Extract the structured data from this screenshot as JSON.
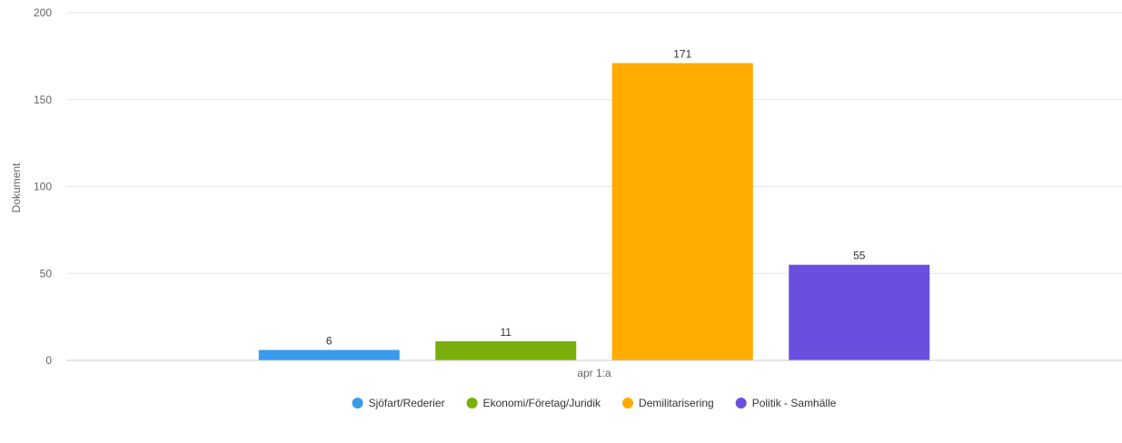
{
  "chart_data": {
    "type": "bar",
    "categories": [
      "apr 1:a"
    ],
    "series": [
      {
        "name": "Sjöfart/Rederier",
        "values": [
          6
        ],
        "color": "#3a9bec"
      },
      {
        "name": "Ekonomi/Företag/Juridik",
        "values": [
          11
        ],
        "color": "#79ae0b"
      },
      {
        "name": "Demilitarisering",
        "values": [
          171
        ],
        "color": "#ffab00"
      },
      {
        "name": "Politik - Samhälle",
        "values": [
          55
        ],
        "color": "#6a4fdf"
      }
    ],
    "ylabel": "Dokument",
    "xlabel": "",
    "ylim": [
      0,
      200
    ],
    "yticks": [
      0,
      50,
      100,
      150,
      200
    ],
    "grid": true,
    "legend_position": "bottom-center",
    "data_labels": true
  }
}
